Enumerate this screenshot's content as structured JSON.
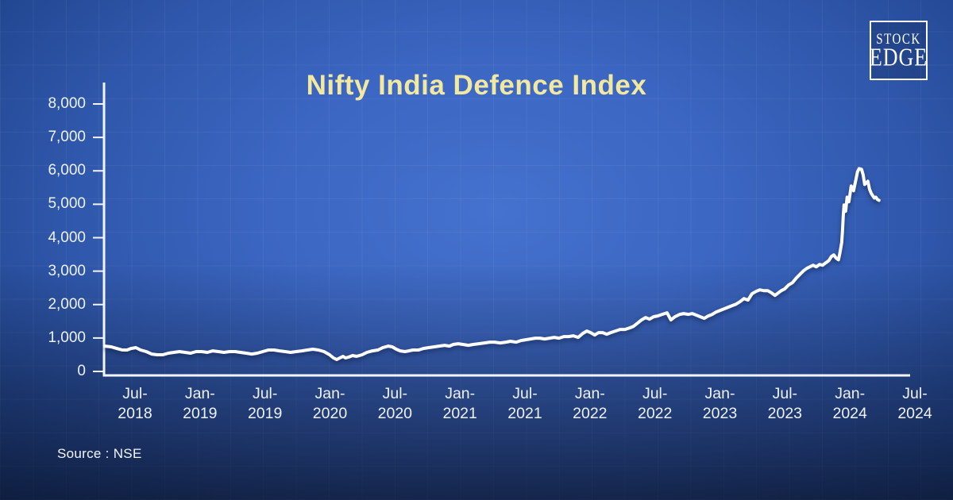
{
  "logo": {
    "line1": "STOCK",
    "line2": "EDGE"
  },
  "source": "Source : NSE",
  "colors": {
    "title_yellow": "#f2e8a0",
    "line_white": "#ffffff",
    "axis_white": "#f2f5fb",
    "label_white": "#eef1fa",
    "bg_center_blue": "#4472ce",
    "bg_edge_blue": "#143a7f",
    "bg_bottom_dark": "#111a33"
  },
  "chart_data": {
    "type": "line",
    "title": "Nifty India Defence Index",
    "xlabel": "",
    "ylabel": "",
    "source": "Source : NSE",
    "grid": "subtle background grid, no plot gridlines",
    "legend": "none",
    "ylim": [
      0,
      8000
    ],
    "y_axis": {
      "tick_values": [
        0,
        1000,
        2000,
        3000,
        4000,
        5000,
        6000,
        7000,
        8000
      ],
      "tick_labels": [
        "0",
        "1,000",
        "2,000",
        "3,000",
        "4,000",
        "5,000",
        "6,000",
        "7,000",
        "8,000"
      ]
    },
    "x_axis": {
      "tick_values": [
        2018.5,
        2019.0,
        2019.5,
        2020.0,
        2020.5,
        2021.0,
        2021.5,
        2022.0,
        2022.5,
        2023.0,
        2023.5,
        2024.0,
        2024.5
      ],
      "tick_labels": [
        "Jul-2018",
        "Jan-2019",
        "Jul-2019",
        "Jan-2020",
        "Jul-2020",
        "Jan-2021",
        "Jul-2021",
        "Jan-2022",
        "Jul-2022",
        "Jan-2023",
        "Jul-2023",
        "Jan-2024",
        "Jul-2024"
      ]
    },
    "series": [
      {
        "name": "Nifty India Defence Index",
        "points": [
          [
            2018.268,
            758
          ],
          [
            2018.317,
            735
          ],
          [
            2018.36,
            687
          ],
          [
            2018.402,
            640
          ],
          [
            2018.439,
            640
          ],
          [
            2018.469,
            687
          ],
          [
            2018.506,
            711
          ],
          [
            2018.543,
            640
          ],
          [
            2018.586,
            593
          ],
          [
            2018.628,
            521
          ],
          [
            2018.671,
            498
          ],
          [
            2018.714,
            498
          ],
          [
            2018.757,
            545
          ],
          [
            2018.799,
            569
          ],
          [
            2018.842,
            593
          ],
          [
            2018.885,
            569
          ],
          [
            2018.928,
            545
          ],
          [
            2018.97,
            593
          ],
          [
            2019.013,
            593
          ],
          [
            2019.056,
            569
          ],
          [
            2019.099,
            616
          ],
          [
            2019.141,
            593
          ],
          [
            2019.184,
            569
          ],
          [
            2019.227,
            593
          ],
          [
            2019.27,
            593
          ],
          [
            2019.312,
            569
          ],
          [
            2019.355,
            545
          ],
          [
            2019.398,
            521
          ],
          [
            2019.441,
            545
          ],
          [
            2019.483,
            593
          ],
          [
            2019.526,
            640
          ],
          [
            2019.569,
            640
          ],
          [
            2019.612,
            616
          ],
          [
            2019.654,
            593
          ],
          [
            2019.697,
            569
          ],
          [
            2019.74,
            593
          ],
          [
            2019.783,
            616
          ],
          [
            2019.826,
            640
          ],
          [
            2019.868,
            664
          ],
          [
            2019.911,
            640
          ],
          [
            2019.954,
            593
          ],
          [
            2019.997,
            498
          ],
          [
            2020.027,
            403
          ],
          [
            2020.052,
            356
          ],
          [
            2020.076,
            403
          ],
          [
            2020.1,
            450
          ],
          [
            2020.119,
            403
          ],
          [
            2020.143,
            427
          ],
          [
            2020.174,
            474
          ],
          [
            2020.204,
            450
          ],
          [
            2020.247,
            498
          ],
          [
            2020.284,
            569
          ],
          [
            2020.326,
            616
          ],
          [
            2020.369,
            640
          ],
          [
            2020.406,
            711
          ],
          [
            2020.449,
            758
          ],
          [
            2020.479,
            735
          ],
          [
            2020.51,
            664
          ],
          [
            2020.54,
            616
          ],
          [
            2020.577,
            593
          ],
          [
            2020.607,
            616
          ],
          [
            2020.638,
            640
          ],
          [
            2020.681,
            640
          ],
          [
            2020.717,
            687
          ],
          [
            2020.76,
            711
          ],
          [
            2020.803,
            735
          ],
          [
            2020.839,
            758
          ],
          [
            2020.882,
            782
          ],
          [
            2020.919,
            758
          ],
          [
            2020.949,
            806
          ],
          [
            2020.986,
            829
          ],
          [
            2021.023,
            806
          ],
          [
            2021.065,
            782
          ],
          [
            2021.102,
            806
          ],
          [
            2021.145,
            829
          ],
          [
            2021.188,
            853
          ],
          [
            2021.23,
            877
          ],
          [
            2021.267,
            877
          ],
          [
            2021.31,
            853
          ],
          [
            2021.353,
            877
          ],
          [
            2021.389,
            901
          ],
          [
            2021.432,
            877
          ],
          [
            2021.469,
            924
          ],
          [
            2021.505,
            948
          ],
          [
            2021.542,
            972
          ],
          [
            2021.579,
            995
          ],
          [
            2021.615,
            995
          ],
          [
            2021.652,
            972
          ],
          [
            2021.689,
            995
          ],
          [
            2021.725,
            1019
          ],
          [
            2021.762,
            995
          ],
          [
            2021.799,
            1043
          ],
          [
            2021.835,
            1043
          ],
          [
            2021.872,
            1066
          ],
          [
            2021.909,
            1019
          ],
          [
            2021.945,
            1138
          ],
          [
            2021.976,
            1209
          ],
          [
            2022.006,
            1161
          ],
          [
            2022.037,
            1090
          ],
          [
            2022.067,
            1161
          ],
          [
            2022.098,
            1161
          ],
          [
            2022.129,
            1114
          ],
          [
            2022.159,
            1161
          ],
          [
            2022.196,
            1209
          ],
          [
            2022.232,
            1256
          ],
          [
            2022.269,
            1256
          ],
          [
            2022.306,
            1303
          ],
          [
            2022.336,
            1351
          ],
          [
            2022.367,
            1446
          ],
          [
            2022.397,
            1540
          ],
          [
            2022.428,
            1612
          ],
          [
            2022.458,
            1564
          ],
          [
            2022.489,
            1635
          ],
          [
            2022.52,
            1659
          ],
          [
            2022.556,
            1706
          ],
          [
            2022.593,
            1754
          ],
          [
            2022.623,
            1540
          ],
          [
            2022.654,
            1635
          ],
          [
            2022.69,
            1706
          ],
          [
            2022.721,
            1730
          ],
          [
            2022.758,
            1706
          ],
          [
            2022.788,
            1730
          ],
          [
            2022.819,
            1683
          ],
          [
            2022.849,
            1635
          ],
          [
            2022.88,
            1588
          ],
          [
            2022.91,
            1659
          ],
          [
            2022.941,
            1706
          ],
          [
            2022.971,
            1777
          ],
          [
            2023.002,
            1825
          ],
          [
            2023.033,
            1872
          ],
          [
            2023.063,
            1920
          ],
          [
            2023.094,
            1967
          ],
          [
            2023.124,
            2014
          ],
          [
            2023.155,
            2086
          ],
          [
            2023.185,
            2180
          ],
          [
            2023.216,
            2133
          ],
          [
            2023.246,
            2322
          ],
          [
            2023.277,
            2393
          ],
          [
            2023.307,
            2441
          ],
          [
            2023.338,
            2417
          ],
          [
            2023.368,
            2417
          ],
          [
            2023.399,
            2346
          ],
          [
            2023.424,
            2275
          ],
          [
            2023.448,
            2346
          ],
          [
            2023.472,
            2417
          ],
          [
            2023.497,
            2464
          ],
          [
            2023.527,
            2583
          ],
          [
            2023.558,
            2654
          ],
          [
            2023.588,
            2796
          ],
          [
            2023.619,
            2915
          ],
          [
            2023.643,
            3010
          ],
          [
            2023.668,
            3081
          ],
          [
            2023.692,
            3128
          ],
          [
            2023.717,
            3176
          ],
          [
            2023.741,
            3128
          ],
          [
            2023.766,
            3199
          ],
          [
            2023.79,
            3176
          ],
          [
            2023.814,
            3247
          ],
          [
            2023.839,
            3318
          ],
          [
            2023.857,
            3436
          ],
          [
            2023.876,
            3484
          ],
          [
            2023.894,
            3389
          ],
          [
            2023.912,
            3341
          ],
          [
            2023.924,
            3555
          ],
          [
            2023.937,
            3863
          ],
          [
            2023.943,
            4218
          ],
          [
            2023.949,
            4645
          ],
          [
            2023.955,
            4977
          ],
          [
            2023.967,
            4787
          ],
          [
            2023.979,
            5214
          ],
          [
            2023.992,
            5072
          ],
          [
            2024.01,
            5546
          ],
          [
            2024.028,
            5404
          ],
          [
            2024.047,
            5759
          ],
          [
            2024.059,
            5972
          ],
          [
            2024.071,
            6067
          ],
          [
            2024.09,
            6043
          ],
          [
            2024.102,
            5878
          ],
          [
            2024.114,
            5593
          ],
          [
            2024.126,
            5641
          ],
          [
            2024.138,
            5688
          ],
          [
            2024.151,
            5451
          ],
          [
            2024.163,
            5333
          ],
          [
            2024.175,
            5261
          ],
          [
            2024.187,
            5190
          ],
          [
            2024.199,
            5214
          ],
          [
            2024.212,
            5143
          ],
          [
            2024.224,
            5119
          ]
        ]
      }
    ]
  }
}
